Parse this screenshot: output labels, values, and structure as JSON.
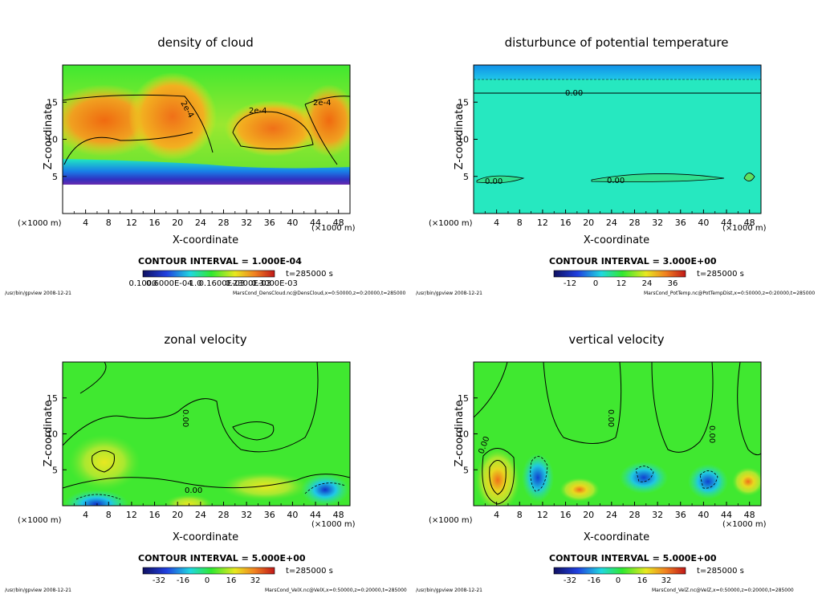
{
  "chart_data": [
    {
      "type": "heatmap",
      "title": "density of cloud",
      "xlabel": "X-coordinate",
      "ylabel": "Z-coordinate",
      "x_unit": "(×1000 m)",
      "y_unit": "(×1000 m)",
      "xlim": [
        0,
        50
      ],
      "ylim": [
        0,
        20
      ],
      "xticks": [
        4,
        8,
        12,
        16,
        20,
        24,
        28,
        32,
        36,
        40,
        44,
        48
      ],
      "yticks": [
        5,
        10,
        15
      ],
      "contour_interval": "CONTOUR INTERVAL = 1.000E-04",
      "time": "t=285000 s",
      "colorbar_labels": [
        "0.1000",
        "0.6000E-04",
        "1.0",
        "0.1600E-03",
        "0.2300E-03",
        "0.3000E-03"
      ],
      "contour_labels": [
        "2e-4",
        "2e-4",
        "2e-4"
      ],
      "footer_left": "/usr/bin/gpview   2008-12-21",
      "footer_right": "MarsCond_DensCloud.nc@DensCloud,x=0:50000,z=0:20000,t=285000"
    },
    {
      "type": "heatmap",
      "title": "disturbunce of potential temperature",
      "xlabel": "X-coordinate",
      "ylabel": "Z-coordinate",
      "x_unit": "(×1000 m)",
      "y_unit": "(×1000 m)",
      "xlim": [
        0,
        50
      ],
      "ylim": [
        0,
        20
      ],
      "xticks": [
        4,
        8,
        12,
        16,
        20,
        24,
        28,
        32,
        36,
        40,
        44,
        48
      ],
      "yticks": [
        5,
        10,
        15
      ],
      "contour_interval": "CONTOUR INTERVAL = 3.000E+00",
      "time": "t=285000 s",
      "colorbar_labels": [
        "-12",
        "0",
        "12",
        "24",
        "36"
      ],
      "contour_labels": [
        "0.00",
        "0.00",
        "0.00"
      ],
      "footer_left": "/usr/bin/gpview   2008-12-21",
      "footer_right": "MarsCond_PotTemp.nc@PotTempDist,x=0:50000,z=0:20000,t=285000"
    },
    {
      "type": "heatmap",
      "title": "zonal velocity",
      "xlabel": "X-coordinate",
      "ylabel": "Z-coordinate",
      "x_unit": "(×1000 m)",
      "y_unit": "(×1000 m)",
      "xlim": [
        0,
        50
      ],
      "ylim": [
        0,
        20
      ],
      "xticks": [
        4,
        8,
        12,
        16,
        20,
        24,
        28,
        32,
        36,
        40,
        44,
        48
      ],
      "yticks": [
        5,
        10,
        15
      ],
      "contour_interval": "CONTOUR INTERVAL = 5.000E+00",
      "time": "t=285000 s",
      "colorbar_labels": [
        "-32",
        "-16",
        "0",
        "16",
        "32"
      ],
      "contour_labels": [
        "0.00",
        "0.00"
      ],
      "footer_left": "/usr/bin/gpview   2008-12-21",
      "footer_right": "MarsCond_VelX.nc@VelX,x=0:50000,z=0:20000,t=285000"
    },
    {
      "type": "heatmap",
      "title": "vertical velocity",
      "xlabel": "X-coordinate",
      "ylabel": "Z-coordinate",
      "x_unit": "(×1000 m)",
      "y_unit": "(×1000 m)",
      "xlim": [
        0,
        50
      ],
      "ylim": [
        0,
        20
      ],
      "xticks": [
        4,
        8,
        12,
        16,
        20,
        24,
        28,
        32,
        36,
        40,
        44,
        48
      ],
      "yticks": [
        5,
        10,
        15
      ],
      "contour_interval": "CONTOUR INTERVAL = 5.000E+00",
      "time": "t=285000 s",
      "colorbar_labels": [
        "-32",
        "-16",
        "0",
        "16",
        "32"
      ],
      "contour_labels": [
        "0.00",
        "0.00",
        "0.00"
      ],
      "footer_left": "/usr/bin/gpview   2008-12-21",
      "footer_right": "MarsCond_VelZ.nc@VelZ,x=0:50000,z=0:20000,t=285000"
    }
  ],
  "colors": {
    "field_green": "#33e830",
    "field_orange": "#f07a18",
    "field_yellow": "#e8ee20",
    "field_cyan": "#22e8c8",
    "field_blue": "#1060e8",
    "field_purple": "#7a2aa8",
    "field_darkblue": "#1010a0"
  }
}
